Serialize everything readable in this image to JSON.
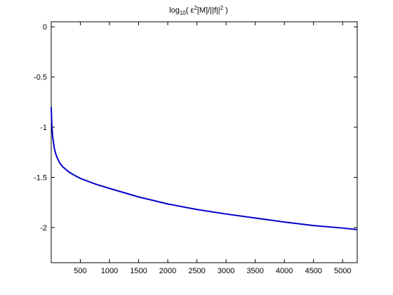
{
  "chart_data": {
    "type": "line",
    "title": {
      "prefix": "log",
      "sub": "10",
      "open": "( ε",
      "sup1": "2",
      "mid": "[M]/||f||",
      "sup2": "2",
      "close": " )"
    },
    "xlabel": "",
    "ylabel": "",
    "xlim": [
      1,
      5250
    ],
    "ylim": [
      -2.35,
      0.05
    ],
    "xticks": [
      500,
      1000,
      1500,
      2000,
      2500,
      3000,
      3500,
      4000,
      4500,
      5000
    ],
    "yticks": [
      0,
      -0.5,
      -1,
      -1.5,
      -2
    ],
    "grid": false,
    "line_color": "#0000cc",
    "series": [
      {
        "x": [
          1,
          10,
          25,
          50,
          75,
          100,
          150,
          200,
          300,
          400,
          500,
          750,
          1000,
          1500,
          2000,
          2500,
          3000,
          3500,
          4000,
          4500,
          5000,
          5250
        ],
        "y": [
          -0.8,
          -0.97,
          -1.09,
          -1.2,
          -1.26,
          -1.3,
          -1.36,
          -1.395,
          -1.445,
          -1.48,
          -1.51,
          -1.565,
          -1.61,
          -1.695,
          -1.765,
          -1.82,
          -1.865,
          -1.905,
          -1.945,
          -1.98,
          -2.005,
          -2.02
        ]
      }
    ]
  }
}
